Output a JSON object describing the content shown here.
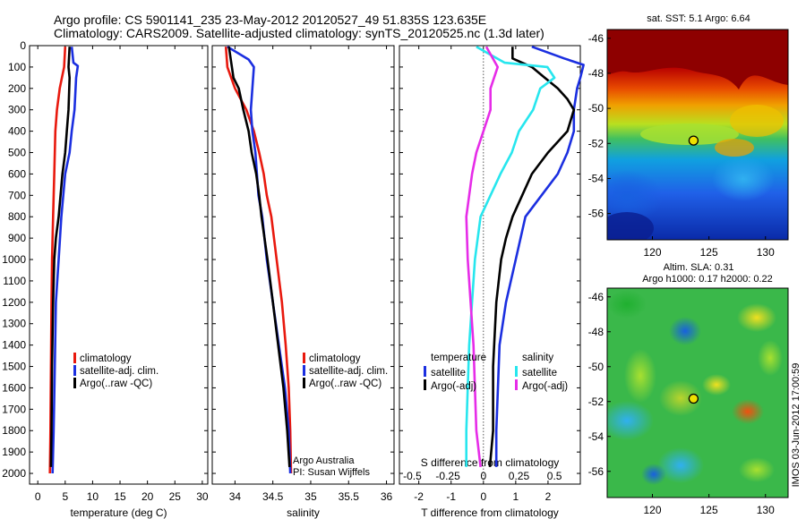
{
  "header": {
    "line1": "Argo profile: CS 5901141_235 23-May-2012 20120527_49 51.835S 123.635E",
    "line2": "Climatology: CARS2009. Satellite-adjusted climatology: synTS_20120525.nc (1.3d later)"
  },
  "colors": {
    "climatology": "#e8190e",
    "satellite_adj": "#1b2fe0",
    "argo": "#000000",
    "cyan": "#27e6ee",
    "magenta": "#e62ce8",
    "dotted": "#555555"
  },
  "chart_data": [
    {
      "id": "temperature",
      "type": "line",
      "xlabel": "temperature (deg C)",
      "ylabel": "",
      "xlim": [
        -1.5,
        31
      ],
      "ylim": [
        2050,
        0
      ],
      "yticks": [
        0,
        100,
        200,
        300,
        400,
        500,
        600,
        700,
        800,
        900,
        1000,
        1100,
        1200,
        1300,
        1400,
        1500,
        1600,
        1700,
        1800,
        1900,
        2000
      ],
      "xticks": [
        0,
        5,
        10,
        15,
        20,
        25,
        30
      ],
      "xticklabels": [
        "0",
        "5",
        "10",
        "15",
        "20",
        "25",
        "30"
      ],
      "legend": {
        "placement": "lower-center",
        "entries": [
          "climatology",
          "satellite-adj. clim.",
          "Argo(..raw -QC)"
        ]
      },
      "series": [
        {
          "name": "climatology",
          "color": "climatology",
          "points": [
            [
              5.0,
              5
            ],
            [
              4.8,
              100
            ],
            [
              4.0,
              200
            ],
            [
              3.5,
              300
            ],
            [
              3.2,
              400
            ],
            [
              3.0,
              600
            ],
            [
              2.8,
              800
            ],
            [
              2.6,
              1000
            ],
            [
              2.5,
              1200
            ],
            [
              2.4,
              1500
            ],
            [
              2.3,
              1800
            ],
            [
              2.2,
              2000
            ]
          ]
        },
        {
          "name": "satellite-adj. clim.",
          "color": "satellite_adj",
          "points": [
            [
              6.2,
              5
            ],
            [
              6.5,
              80
            ],
            [
              7.3,
              95
            ],
            [
              7.0,
              150
            ],
            [
              6.7,
              300
            ],
            [
              6.2,
              400
            ],
            [
              5.8,
              500
            ],
            [
              5.0,
              600
            ],
            [
              4.3,
              800
            ],
            [
              3.8,
              1000
            ],
            [
              3.3,
              1200
            ],
            [
              3.1,
              1500
            ],
            [
              2.9,
              1800
            ],
            [
              2.7,
              2000
            ]
          ]
        },
        {
          "name": "Argo(..raw -QC)",
          "color": "argo",
          "points": [
            [
              5.8,
              5
            ],
            [
              5.6,
              100
            ],
            [
              5.8,
              150
            ],
            [
              5.6,
              300
            ],
            [
              5.3,
              400
            ],
            [
              5.0,
              500
            ],
            [
              4.5,
              600
            ],
            [
              3.8,
              800
            ],
            [
              3.3,
              900
            ],
            [
              3.0,
              1000
            ],
            [
              2.8,
              1200
            ],
            [
              2.6,
              1500
            ],
            [
              2.5,
              1800
            ],
            [
              2.4,
              1970
            ]
          ]
        }
      ]
    },
    {
      "id": "salinity",
      "type": "line",
      "xlabel": "salinity",
      "ylabel": "",
      "xlim": [
        33.7,
        36.1
      ],
      "ylim": [
        2050,
        0
      ],
      "xticks": [
        34,
        34.5,
        35,
        35.5,
        36
      ],
      "xticklabels": [
        "34",
        "34.5",
        "35",
        "35.5",
        "36"
      ],
      "legend": {
        "placement": "lower-center",
        "entries": [
          "climatology",
          "satellite-adj. clim.",
          "Argo(..raw -QC)"
        ]
      },
      "annotations": [
        "Argo Australia",
        "PI: Susan Wijffels"
      ],
      "series": [
        {
          "name": "climatology",
          "color": "climatology",
          "points": [
            [
              33.88,
              5
            ],
            [
              33.9,
              100
            ],
            [
              34.0,
              200
            ],
            [
              34.15,
              300
            ],
            [
              34.25,
              400
            ],
            [
              34.32,
              500
            ],
            [
              34.38,
              600
            ],
            [
              34.42,
              700
            ],
            [
              34.48,
              800
            ],
            [
              34.55,
              1000
            ],
            [
              34.62,
              1200
            ],
            [
              34.67,
              1400
            ],
            [
              34.71,
              1600
            ],
            [
              34.73,
              1800
            ],
            [
              34.74,
              2000
            ]
          ]
        },
        {
          "name": "satellite-adj. clim.",
          "color": "satellite_adj",
          "points": [
            [
              33.9,
              5
            ],
            [
              34.18,
              65
            ],
            [
              34.25,
              100
            ],
            [
              34.23,
              200
            ],
            [
              34.21,
              300
            ],
            [
              34.23,
              400
            ],
            [
              34.27,
              500
            ],
            [
              34.29,
              600
            ],
            [
              34.31,
              700
            ],
            [
              34.36,
              800
            ],
            [
              34.42,
              1000
            ],
            [
              34.5,
              1200
            ],
            [
              34.58,
              1400
            ],
            [
              34.66,
              1600
            ],
            [
              34.71,
              1800
            ],
            [
              34.73,
              2000
            ]
          ]
        },
        {
          "name": "Argo(..raw -QC)",
          "color": "argo",
          "points": [
            [
              33.92,
              5
            ],
            [
              33.98,
              150
            ],
            [
              34.05,
              200
            ],
            [
              34.11,
              300
            ],
            [
              34.18,
              400
            ],
            [
              34.22,
              500
            ],
            [
              34.28,
              600
            ],
            [
              34.32,
              700
            ],
            [
              34.35,
              800
            ],
            [
              34.43,
              1000
            ],
            [
              34.5,
              1200
            ],
            [
              34.57,
              1400
            ],
            [
              34.64,
              1600
            ],
            [
              34.69,
              1800
            ],
            [
              34.72,
              1970
            ]
          ]
        }
      ]
    },
    {
      "id": "difference",
      "type": "line",
      "xlabel": "T difference from climatology",
      "top_xlabel": "S difference from climatology",
      "xlim": [
        -2.6,
        3.0
      ],
      "ylim": [
        2050,
        0
      ],
      "xticks": [
        -2,
        -1,
        0,
        1,
        2
      ],
      "xticklabels": [
        "-2",
        "-1",
        "0",
        "1",
        "2"
      ],
      "top_xticks": [
        -0.5,
        -0.25,
        0,
        0.25,
        0.5
      ],
      "top_xticklabels": [
        "-0.5",
        "-0.25",
        "0",
        "0.25",
        "0.5"
      ],
      "legend": {
        "placement": "lower-center",
        "temperature_title": "temperature",
        "salinity_title": "salinity",
        "entries": [
          "satellite",
          "Argo(-adj)",
          "satellite",
          "Argo(-adj)"
        ]
      },
      "series": [
        {
          "name": "temperature satellite",
          "color": "satellite_adj",
          "points": [
            [
              1.5,
              5
            ],
            [
              2.5,
              60
            ],
            [
              3.1,
              90
            ],
            [
              3.0,
              150
            ],
            [
              2.9,
              200
            ],
            [
              2.8,
              300
            ],
            [
              2.8,
              400
            ],
            [
              2.6,
              500
            ],
            [
              2.3,
              600
            ],
            [
              1.8,
              700
            ],
            [
              1.3,
              800
            ],
            [
              1.0,
              1000
            ],
            [
              0.7,
              1200
            ],
            [
              0.5,
              1400
            ],
            [
              0.45,
              1600
            ],
            [
              0.4,
              1800
            ],
            [
              0.4,
              1970
            ]
          ]
        },
        {
          "name": "temperature Argo(-adj)",
          "color": "argo",
          "points": [
            [
              0.9,
              5
            ],
            [
              0.9,
              60
            ],
            [
              1.5,
              100
            ],
            [
              1.9,
              150
            ],
            [
              2.3,
              200
            ],
            [
              2.6,
              250
            ],
            [
              2.8,
              300
            ],
            [
              2.6,
              400
            ],
            [
              2.0,
              500
            ],
            [
              1.5,
              600
            ],
            [
              1.2,
              700
            ],
            [
              0.9,
              800
            ],
            [
              0.7,
              900
            ],
            [
              0.55,
              1000
            ],
            [
              0.4,
              1200
            ],
            [
              0.3,
              1500
            ],
            [
              0.3,
              1800
            ],
            [
              0.2,
              1970
            ]
          ]
        },
        {
          "name": "salinity satellite",
          "color": "cyan",
          "points": [
            [
              -0.05,
              5
            ],
            [
              0.15,
              80
            ],
            [
              0.45,
              100
            ],
            [
              0.5,
              150
            ],
            [
              0.4,
              200
            ],
            [
              0.35,
              300
            ],
            [
              0.25,
              400
            ],
            [
              0.2,
              500
            ],
            [
              0.12,
              600
            ],
            [
              0.05,
              700
            ],
            [
              -0.02,
              800
            ],
            [
              -0.06,
              1000
            ],
            [
              -0.08,
              1200
            ],
            [
              -0.1,
              1400
            ],
            [
              -0.11,
              1600
            ],
            [
              -0.12,
              1800
            ],
            [
              -0.12,
              1970
            ]
          ]
        },
        {
          "name": "salinity Argo(-adj)",
          "color": "magenta",
          "points": [
            [
              0.02,
              5
            ],
            [
              0.1,
              100
            ],
            [
              0.05,
              200
            ],
            [
              0.05,
              300
            ],
            [
              0.0,
              400
            ],
            [
              -0.05,
              500
            ],
            [
              -0.08,
              600
            ],
            [
              -0.1,
              700
            ],
            [
              -0.12,
              800
            ],
            [
              -0.11,
              1000
            ],
            [
              -0.09,
              1200
            ],
            [
              -0.07,
              1400
            ],
            [
              -0.06,
              1600
            ],
            [
              -0.05,
              1800
            ],
            [
              -0.02,
              1970
            ]
          ]
        }
      ]
    }
  ],
  "maps": [
    {
      "id": "sst-map",
      "title": "sat. SST: 5.1 Argo: 6.64",
      "subtitle": "",
      "xticks": [
        120,
        125,
        130
      ],
      "yticks": [
        -46,
        -48,
        -50,
        -52,
        -54,
        -56
      ],
      "xlim": [
        116,
        132
      ],
      "ylim": [
        -57.5,
        -45.5
      ],
      "argo_location": [
        123.635,
        -51.835
      ]
    },
    {
      "id": "sla-map",
      "title": "Altim. SLA: 0.31",
      "subtitle": "Argo h1000: 0.17 h2000: 0.22",
      "xticks": [
        120,
        125,
        130
      ],
      "yticks": [
        -46,
        -48,
        -50,
        -52,
        -54,
        -56
      ],
      "xlim": [
        116,
        132
      ],
      "ylim": [
        -57.5,
        -45.5
      ],
      "argo_location": [
        123.635,
        -51.835
      ]
    }
  ],
  "side_label": "IMOS 03-Jun-2012 17:00:59"
}
